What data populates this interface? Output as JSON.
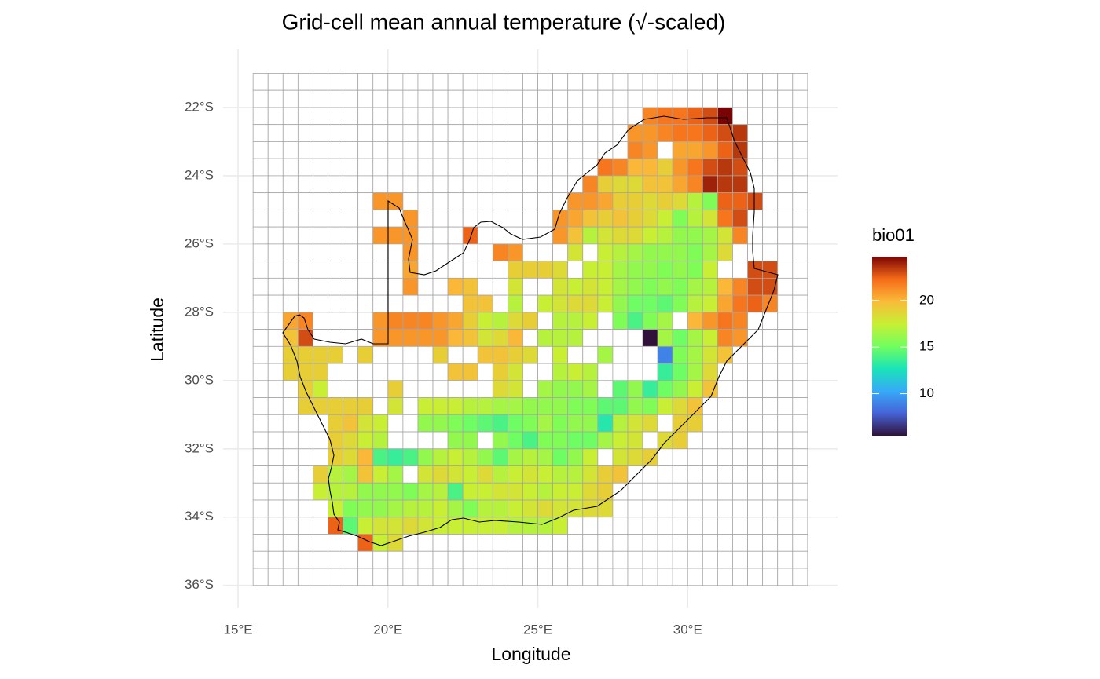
{
  "chart_data": {
    "type": "heatmap",
    "title": "Grid-cell mean annual temperature (√-scaled)",
    "x_label": "Longitude",
    "y_label": "Latitude",
    "legend_title": "bio01",
    "xlim": [
      14.5,
      35
    ],
    "ylim": [
      -36.65,
      -20.3
    ],
    "xticks": [
      {
        "value": 15,
        "label": "15°E"
      },
      {
        "value": 20,
        "label": "20°E"
      },
      {
        "value": 25,
        "label": "25°E"
      },
      {
        "value": 30,
        "label": "30°E"
      }
    ],
    "yticks": [
      {
        "value": -22,
        "label": "22°S"
      },
      {
        "value": -24,
        "label": "24°S"
      },
      {
        "value": -26,
        "label": "26°S"
      },
      {
        "value": -28,
        "label": "28°S"
      },
      {
        "value": -30,
        "label": "30°S"
      },
      {
        "value": -32,
        "label": "32°S"
      },
      {
        "value": -34,
        "label": "34°S"
      },
      {
        "value": -36,
        "label": "36°S"
      }
    ],
    "grid": true,
    "colorlim": [
      5.5,
      24.7
    ],
    "colorticks": [
      10,
      15,
      20
    ],
    "colors": [
      "#30123b",
      "#4662d7",
      "#36aaf9",
      "#1ae4b6",
      "#72fe5e",
      "#c8ef34",
      "#faba39",
      "#f66b19",
      "#7a0403"
    ],
    "x": [
      15.75,
      16.25,
      16.75,
      17.25,
      17.75,
      18.25,
      18.75,
      19.25,
      19.75,
      20.25,
      20.75,
      21.25,
      21.75,
      22.25,
      22.75,
      23.25,
      23.75,
      24.25,
      24.75,
      25.25,
      25.75,
      26.25,
      26.75,
      27.25,
      27.75,
      28.25,
      28.75,
      29.25,
      29.75,
      30.25,
      30.75,
      31.25,
      31.75,
      32.25,
      32.75,
      33.25,
      33.75
    ],
    "y": [
      -21.25,
      -21.75,
      -22.25,
      -22.75,
      -23.25,
      -23.75,
      -24.25,
      -24.75,
      -25.25,
      -25.75,
      -26.25,
      -26.75,
      -27.25,
      -27.75,
      -28.25,
      -28.75,
      -29.25,
      -29.75,
      -30.25,
      -30.75,
      -31.25,
      -31.75,
      -32.25,
      -32.75,
      -33.25,
      -33.75,
      -34.25,
      -34.75,
      -35.25,
      -35.75
    ],
    "values": [
      [
        null,
        null,
        null,
        null,
        null,
        null,
        null,
        null,
        null,
        null,
        null,
        null,
        null,
        null,
        null,
        null,
        null,
        null,
        null,
        null,
        null,
        null,
        null,
        null,
        null,
        null,
        null,
        null,
        null,
        null,
        null,
        null,
        null,
        null,
        null,
        null,
        null
      ],
      [
        null,
        null,
        null,
        null,
        null,
        null,
        null,
        null,
        null,
        null,
        null,
        null,
        null,
        null,
        null,
        null,
        null,
        null,
        null,
        null,
        null,
        null,
        null,
        null,
        null,
        null,
        null,
        null,
        null,
        null,
        null,
        null,
        null,
        null,
        null,
        null,
        null
      ],
      [
        null,
        null,
        null,
        null,
        null,
        null,
        null,
        null,
        null,
        null,
        null,
        null,
        null,
        null,
        null,
        null,
        null,
        null,
        null,
        null,
        null,
        null,
        null,
        null,
        null,
        null,
        21.5,
        22,
        22,
        22.5,
        23,
        24.7,
        null,
        null,
        null,
        null,
        null
      ],
      [
        null,
        null,
        null,
        null,
        null,
        null,
        null,
        null,
        null,
        null,
        null,
        null,
        null,
        null,
        null,
        null,
        null,
        null,
        null,
        null,
        null,
        null,
        null,
        null,
        null,
        21,
        21,
        21.5,
        22,
        22,
        22.5,
        23,
        23.5,
        null,
        null,
        null,
        null
      ],
      [
        null,
        null,
        null,
        null,
        null,
        null,
        null,
        null,
        null,
        null,
        null,
        null,
        null,
        null,
        null,
        null,
        null,
        null,
        null,
        null,
        null,
        null,
        null,
        null,
        null,
        21.5,
        21,
        null,
        20.5,
        20.5,
        21,
        22.5,
        23.5,
        null,
        null,
        null,
        null
      ],
      [
        null,
        null,
        null,
        null,
        null,
        null,
        null,
        null,
        null,
        null,
        null,
        null,
        null,
        null,
        null,
        null,
        null,
        null,
        null,
        null,
        null,
        null,
        null,
        22,
        21.5,
        20,
        20,
        19,
        21,
        22,
        23,
        23.5,
        23,
        null,
        null,
        null,
        null
      ],
      [
        null,
        null,
        null,
        null,
        null,
        null,
        null,
        null,
        null,
        null,
        null,
        null,
        null,
        null,
        null,
        null,
        null,
        null,
        null,
        null,
        null,
        null,
        21.5,
        19,
        18.5,
        18.5,
        19.5,
        19.5,
        20.5,
        21.5,
        24,
        23.5,
        23.5,
        null,
        null,
        null,
        null
      ],
      [
        null,
        null,
        null,
        null,
        null,
        null,
        null,
        null,
        21,
        21,
        null,
        null,
        null,
        null,
        null,
        null,
        null,
        null,
        null,
        null,
        null,
        21,
        21,
        20.5,
        19,
        19,
        18.5,
        19,
        18.5,
        17,
        15.5,
        22.5,
        22.5,
        23,
        null,
        null,
        null
      ],
      [
        null,
        null,
        null,
        null,
        null,
        null,
        null,
        null,
        null,
        null,
        21,
        null,
        null,
        null,
        null,
        null,
        null,
        null,
        null,
        null,
        21,
        20.5,
        19.5,
        19,
        19.5,
        19,
        18.5,
        17.5,
        15.5,
        17,
        18,
        22,
        23,
        null,
        null,
        null,
        null
      ],
      [
        null,
        null,
        null,
        null,
        null,
        null,
        null,
        null,
        21,
        21,
        21,
        null,
        null,
        null,
        22.5,
        null,
        null,
        null,
        null,
        null,
        21,
        19.5,
        17,
        18,
        18.5,
        18.5,
        17.5,
        17,
        16,
        16,
        16.5,
        18,
        21.5,
        null,
        null,
        null,
        null
      ],
      [
        null,
        null,
        null,
        null,
        null,
        null,
        null,
        null,
        null,
        null,
        21,
        null,
        null,
        null,
        null,
        null,
        21.5,
        21,
        null,
        null,
        null,
        18,
        null,
        17.5,
        17,
        16.5,
        16,
        16,
        16,
        15.5,
        16.5,
        18.5,
        null,
        null,
        null,
        null,
        null
      ],
      [
        null,
        null,
        null,
        null,
        null,
        null,
        null,
        null,
        null,
        null,
        20.5,
        null,
        null,
        null,
        null,
        null,
        null,
        19,
        19,
        19,
        18.5,
        null,
        17.5,
        17.5,
        16.5,
        16,
        16,
        15.5,
        16,
        15.5,
        17.5,
        null,
        null,
        23,
        23,
        null,
        null
      ],
      [
        null,
        null,
        null,
        null,
        null,
        null,
        null,
        null,
        null,
        null,
        21,
        null,
        null,
        20,
        19.5,
        null,
        null,
        18,
        null,
        null,
        18,
        17.5,
        18,
        17.5,
        16.5,
        16,
        15.5,
        16,
        15.5,
        16.5,
        17,
        20,
        21.5,
        23,
        23,
        null,
        null
      ],
      [
        null,
        null,
        null,
        null,
        null,
        null,
        null,
        null,
        null,
        null,
        null,
        null,
        null,
        null,
        19.5,
        19.5,
        null,
        17,
        null,
        17.5,
        18,
        18.5,
        18.5,
        17.5,
        16,
        15,
        15,
        14.5,
        15.5,
        17,
        17.5,
        20.5,
        22,
        22.5,
        21.5,
        null,
        null
      ],
      [
        null,
        null,
        20.5,
        21.5,
        null,
        null,
        null,
        null,
        21,
        21.5,
        21.5,
        21.5,
        21,
        20.5,
        19,
        17.5,
        17,
        18.5,
        19,
        null,
        17,
        17,
        17.5,
        null,
        15.5,
        14,
        15.5,
        16.5,
        null,
        20,
        21,
        22,
        21.5,
        null,
        null,
        null,
        null
      ],
      [
        null,
        null,
        19.5,
        23,
        null,
        null,
        null,
        null,
        21,
        21,
        21,
        21,
        21,
        20,
        19.5,
        18,
        18.5,
        20,
        null,
        17,
        17,
        17,
        null,
        null,
        null,
        null,
        5.5,
        16.5,
        15,
        16.5,
        17.5,
        21.5,
        21,
        null,
        null,
        null,
        null
      ],
      [
        null,
        null,
        19,
        19,
        19,
        19,
        null,
        19,
        null,
        null,
        null,
        null,
        19,
        null,
        null,
        19.5,
        19.5,
        19,
        18.5,
        null,
        17.5,
        null,
        null,
        16.5,
        null,
        null,
        null,
        9,
        15.5,
        16.5,
        18,
        19.5,
        null,
        null,
        null,
        null,
        null
      ],
      [
        null,
        null,
        19,
        19,
        19,
        null,
        null,
        null,
        null,
        null,
        null,
        null,
        null,
        19.5,
        19.5,
        null,
        19,
        18,
        null,
        null,
        17,
        17.5,
        17,
        null,
        null,
        null,
        null,
        13.5,
        15,
        16.5,
        18.5,
        null,
        null,
        null,
        null,
        null,
        null
      ],
      [
        null,
        null,
        null,
        19,
        17.5,
        null,
        null,
        null,
        null,
        19,
        null,
        null,
        null,
        null,
        null,
        null,
        18.5,
        18,
        null,
        16.5,
        16,
        16,
        16.5,
        null,
        14.5,
        16,
        13.5,
        15,
        16,
        17.5,
        19.5,
        null,
        null,
        null,
        null,
        null,
        null
      ],
      [
        null,
        null,
        null,
        19,
        19,
        19,
        19,
        19,
        null,
        18,
        null,
        17.5,
        17.5,
        17.5,
        17,
        17,
        16.5,
        16.5,
        16,
        16,
        16,
        15.5,
        15.5,
        14.5,
        14.5,
        16,
        15.5,
        17.5,
        18.5,
        19.5,
        null,
        null,
        null,
        null,
        null,
        null,
        null
      ],
      [
        null,
        null,
        null,
        null,
        null,
        19,
        19.5,
        18,
        17.5,
        null,
        null,
        16,
        16,
        15.5,
        15,
        14.5,
        14,
        15,
        15.5,
        16.5,
        15.5,
        16,
        16,
        13,
        17,
        18,
        18.5,
        null,
        19,
        19,
        null,
        null,
        null,
        null,
        null,
        null,
        null
      ],
      [
        null,
        null,
        null,
        null,
        null,
        19,
        18.5,
        17.5,
        17,
        null,
        null,
        null,
        null,
        16,
        16,
        null,
        16,
        15,
        14,
        15.5,
        15.5,
        15,
        15,
        16.5,
        17.5,
        18,
        null,
        18.5,
        19,
        null,
        null,
        null,
        null,
        null,
        null,
        null,
        null
      ],
      [
        null,
        null,
        null,
        null,
        null,
        19,
        18.5,
        20,
        14,
        13.5,
        14,
        16,
        17,
        17.5,
        17,
        16,
        14.5,
        16.5,
        17,
        16.5,
        15,
        16,
        17.5,
        null,
        18,
        18.5,
        19,
        null,
        null,
        null,
        null,
        null,
        null,
        null,
        null,
        null,
        null
      ],
      [
        null,
        null,
        null,
        null,
        19,
        17,
        16.5,
        19.5,
        17.5,
        16.5,
        null,
        18,
        18.5,
        18,
        17.5,
        18.5,
        17,
        17.5,
        18,
        17.5,
        17,
        17,
        18,
        19,
        19.5,
        null,
        null,
        null,
        null,
        null,
        null,
        null,
        null,
        null,
        null,
        null,
        null
      ],
      [
        null,
        null,
        null,
        null,
        17.5,
        17,
        17,
        16,
        16,
        16,
        15.5,
        16.5,
        17,
        14,
        17.5,
        17.5,
        18,
        18,
        17.5,
        17,
        17.5,
        17.5,
        18.5,
        19,
        null,
        null,
        null,
        null,
        null,
        null,
        null,
        null,
        null,
        null,
        null,
        null,
        null
      ],
      [
        null,
        null,
        null,
        null,
        null,
        17.5,
        15.5,
        16,
        16,
        16.5,
        17,
        17,
        17.5,
        16.5,
        15.5,
        17,
        17,
        17.5,
        18,
        18.5,
        18,
        18,
        18.5,
        18.5,
        null,
        null,
        null,
        null,
        null,
        null,
        null,
        null,
        null,
        null,
        null,
        null,
        null
      ],
      [
        null,
        null,
        null,
        null,
        null,
        22.5,
        14.5,
        17.5,
        18,
        18,
        18.5,
        18,
        17.5,
        17.5,
        17.5,
        17.5,
        17.5,
        17,
        17,
        17,
        17.5,
        null,
        null,
        null,
        null,
        null,
        null,
        null,
        null,
        null,
        null,
        null,
        null,
        null,
        null,
        null,
        null
      ],
      [
        null,
        null,
        null,
        null,
        null,
        null,
        null,
        22.5,
        17.5,
        18.5,
        null,
        null,
        null,
        null,
        null,
        null,
        null,
        null,
        null,
        null,
        null,
        null,
        null,
        null,
        null,
        null,
        null,
        null,
        null,
        null,
        null,
        null,
        null,
        null,
        null,
        null,
        null
      ],
      [
        null,
        null,
        null,
        null,
        null,
        null,
        null,
        null,
        null,
        null,
        null,
        null,
        null,
        null,
        null,
        null,
        null,
        null,
        null,
        null,
        null,
        null,
        null,
        null,
        null,
        null,
        null,
        null,
        null,
        null,
        null,
        null,
        null,
        null,
        null,
        null,
        null
      ],
      [
        null,
        null,
        null,
        null,
        null,
        null,
        null,
        null,
        null,
        null,
        null,
        null,
        null,
        null,
        null,
        null,
        null,
        null,
        null,
        null,
        null,
        null,
        null,
        null,
        null,
        null,
        null,
        null,
        null,
        null,
        null,
        null,
        null,
        null,
        null,
        null,
        null
      ]
    ]
  }
}
